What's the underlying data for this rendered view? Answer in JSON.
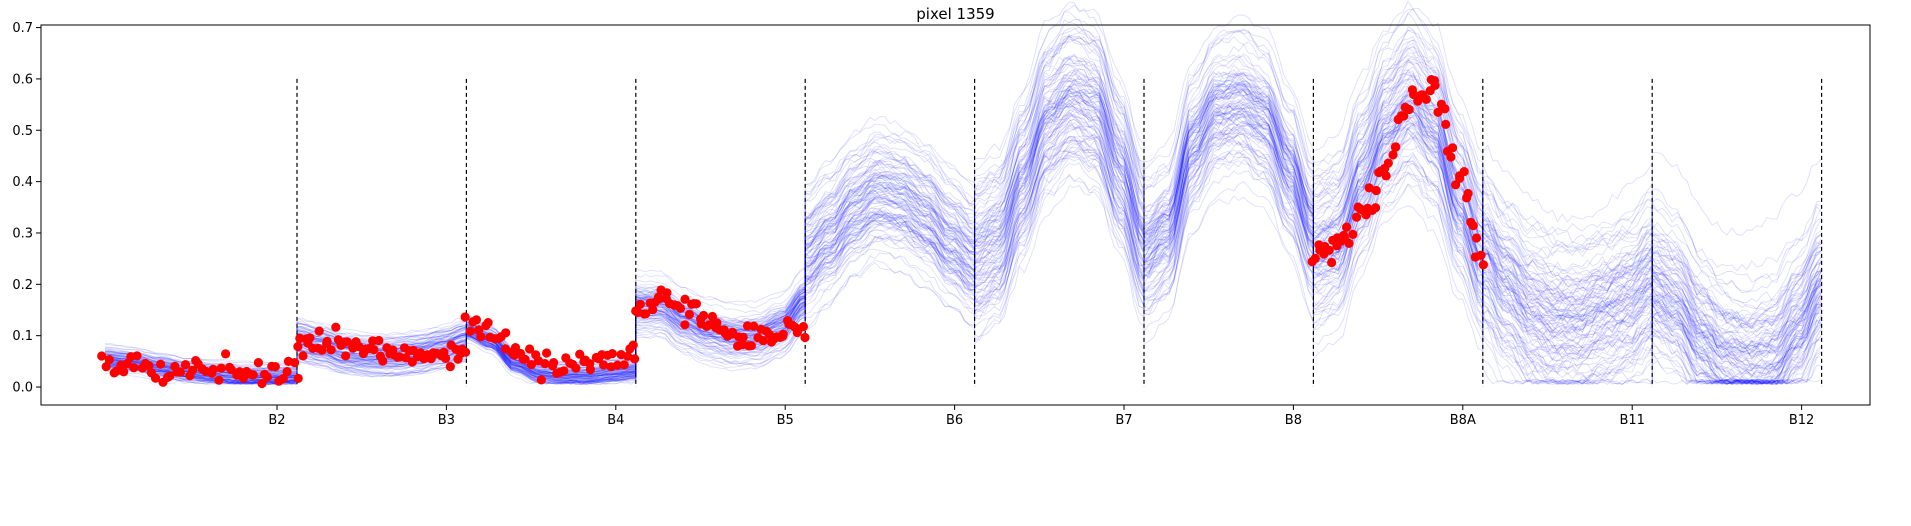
{
  "chart_data": {
    "type": "line",
    "title": "pixel 1359",
    "xlabel": "",
    "ylabel": "",
    "x_tick_labels": [
      "B2",
      "B3",
      "B4",
      "B5",
      "B6",
      "B7",
      "B8",
      "B8A",
      "B11",
      "B12"
    ],
    "y_ticks": [
      0.0,
      0.1,
      0.2,
      0.3,
      0.4,
      0.5,
      0.6,
      0.7
    ],
    "y_tick_labels": [
      "0.0",
      "0.1",
      "0.2",
      "0.3",
      "0.4",
      "0.5",
      "0.6",
      "0.7"
    ],
    "ylim": [
      -0.035,
      0.705
    ],
    "grid": false,
    "band_separator_ymax": 0.6,
    "ensemble_color": "#0000ff",
    "observation_color": "#ff0000",
    "separator_color": "#000000",
    "band_segments": [
      {
        "band": "B2",
        "knots": [
          0.055,
          0.05,
          0.04,
          0.03,
          0.025,
          0.02,
          0.02,
          0.02
        ],
        "spread": 0.012
      },
      {
        "band": "B3",
        "knots": [
          0.09,
          0.08,
          0.065,
          0.06,
          0.06,
          0.065,
          0.075,
          0.09
        ],
        "spread": 0.018
      },
      {
        "band": "B4",
        "knots": [
          0.11,
          0.09,
          0.045,
          0.025,
          0.02,
          0.02,
          0.025,
          0.03
        ],
        "spread": 0.012
      },
      {
        "band": "B5",
        "knots": [
          0.16,
          0.16,
          0.13,
          0.11,
          0.1,
          0.1,
          0.12,
          0.17
        ],
        "spread": 0.025
      },
      {
        "band": "B6",
        "knots": [
          0.26,
          0.3,
          0.35,
          0.38,
          0.37,
          0.34,
          0.29,
          0.25
        ],
        "spread": 0.055
      },
      {
        "band": "B7",
        "knots": [
          0.25,
          0.28,
          0.4,
          0.52,
          0.56,
          0.54,
          0.42,
          0.28
        ],
        "spread": 0.075
      },
      {
        "band": "B8",
        "knots": [
          0.26,
          0.3,
          0.47,
          0.54,
          0.55,
          0.52,
          0.42,
          0.3
        ],
        "spread": 0.07
      },
      {
        "band": "B8A",
        "knots": [
          0.28,
          0.3,
          0.42,
          0.52,
          0.57,
          0.52,
          0.38,
          0.27
        ],
        "spread": 0.075
      },
      {
        "band": "B11",
        "knots": [
          0.25,
          0.19,
          0.14,
          0.12,
          0.12,
          0.14,
          0.16,
          0.2
        ],
        "spread": 0.085
      },
      {
        "band": "B12",
        "knots": [
          0.2,
          0.17,
          0.1,
          0.06,
          0.05,
          0.06,
          0.12,
          0.2
        ],
        "spread": 0.08
      }
    ],
    "observation_segments": [
      {
        "band": "B2",
        "knots": [
          0.045,
          0.045,
          0.04,
          0.03,
          0.025,
          0.03,
          0.025,
          0.03
        ],
        "noise": 0.012,
        "count": 55
      },
      {
        "band": "B3",
        "knots": [
          0.08,
          0.09,
          0.085,
          0.065,
          0.06,
          0.06,
          0.06,
          0.07
        ],
        "noise": 0.012,
        "count": 60
      },
      {
        "band": "B4",
        "knots": [
          0.12,
          0.11,
          0.07,
          0.045,
          0.045,
          0.04,
          0.05,
          0.07
        ],
        "noise": 0.012,
        "count": 55
      },
      {
        "band": "B5",
        "knots": [
          0.15,
          0.17,
          0.16,
          0.12,
          0.1,
          0.1,
          0.1,
          0.12
        ],
        "noise": 0.012,
        "count": 65
      },
      {
        "band": "B8A",
        "knots": [
          0.25,
          0.28,
          0.34,
          0.42,
          0.58,
          0.57,
          0.42,
          0.25
        ],
        "noise": 0.018,
        "count": 70
      }
    ]
  }
}
